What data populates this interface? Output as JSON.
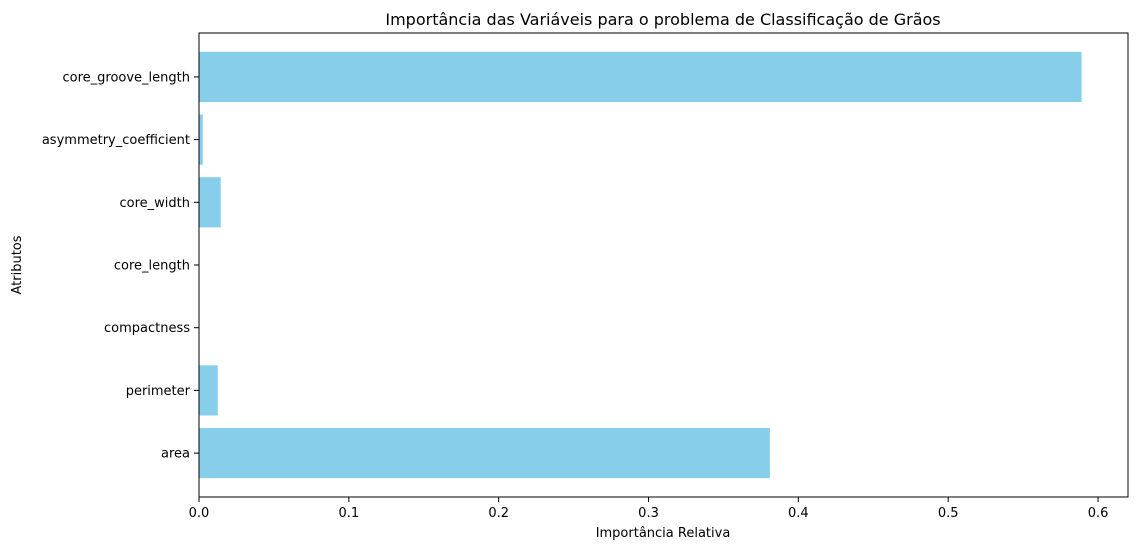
{
  "chart_data": {
    "type": "bar",
    "orientation": "horizontal",
    "title": "Importância das Variáveis para o problema de Classificação de Grãos",
    "xlabel": "Importância Relativa",
    "ylabel": "Atributos",
    "categories": [
      "area",
      "perimeter",
      "compactness",
      "core_length",
      "core_width",
      "asymmetry_coefficient",
      "core_groove_length"
    ],
    "values": [
      0.381,
      0.0125,
      0.0,
      0.0,
      0.0145,
      0.0025,
      0.589
    ],
    "xlim": [
      0,
      0.62
    ],
    "xticks": [
      0,
      0.1,
      0.2,
      0.3,
      0.4,
      0.5,
      0.6
    ],
    "xtick_labels": [
      "0.0",
      "0.1",
      "0.2",
      "0.3",
      "0.4",
      "0.5",
      "0.6"
    ],
    "bar_color": "#87ceeb",
    "grid": false,
    "legend": "none"
  }
}
